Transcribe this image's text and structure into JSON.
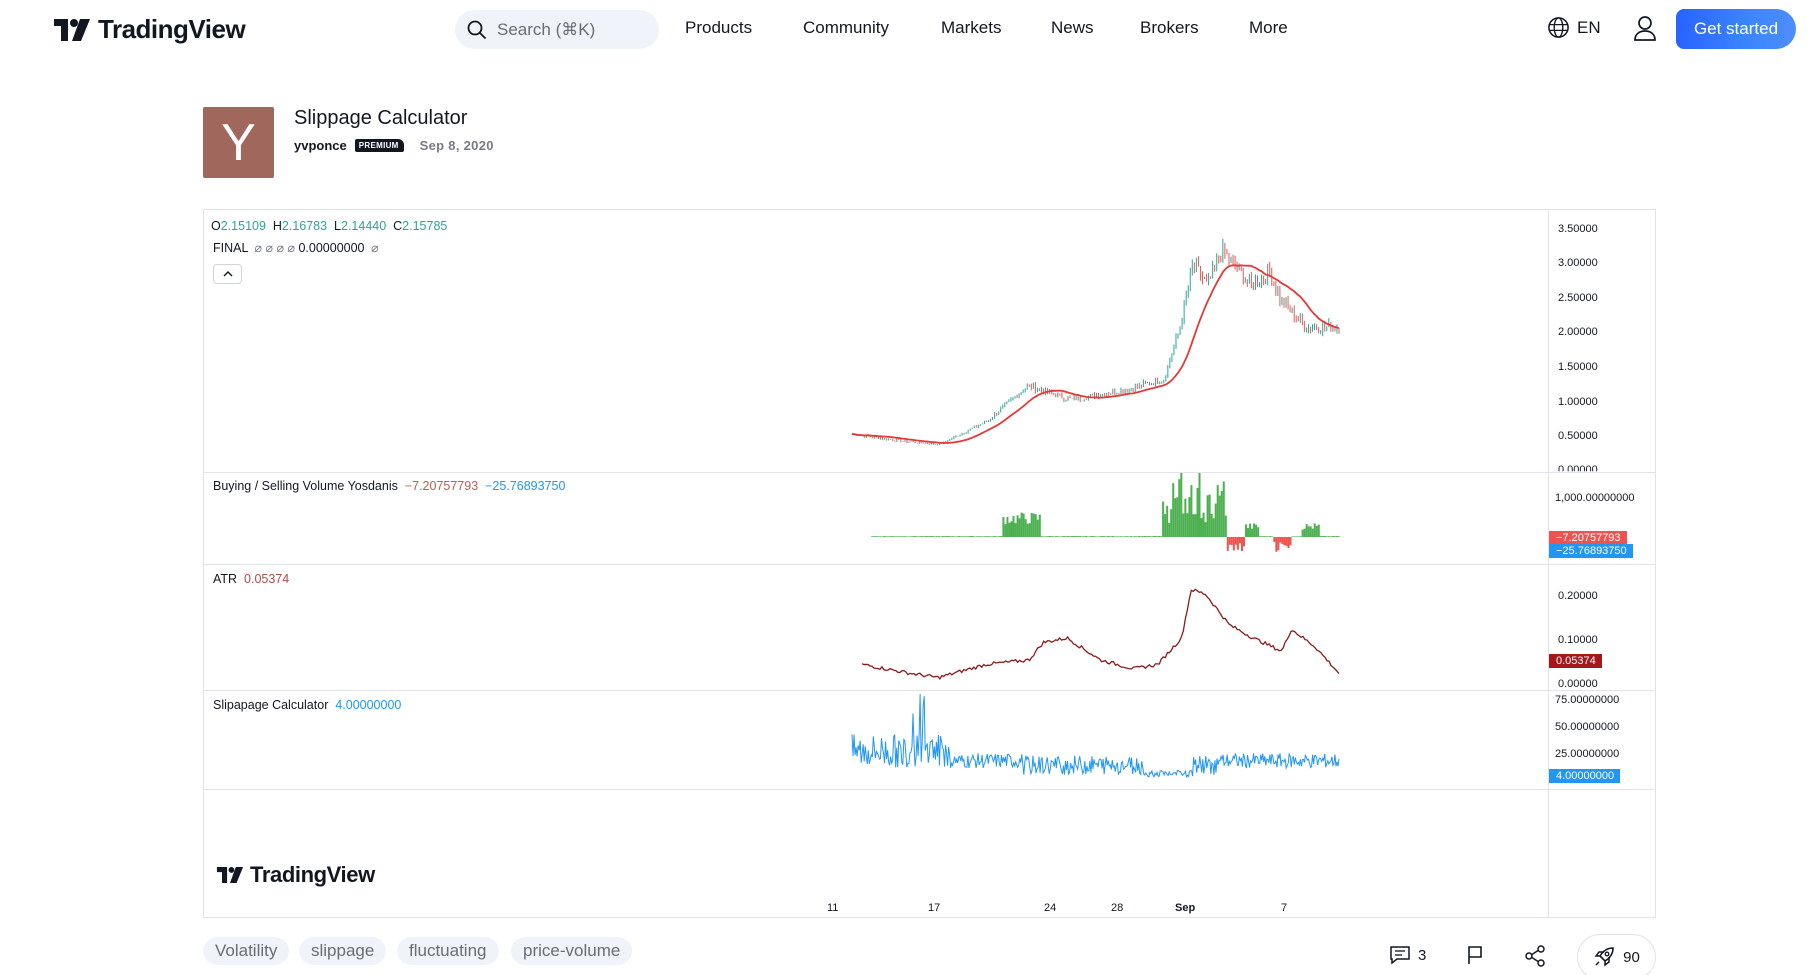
{
  "header": {
    "logo_text": "TradingView",
    "search_placeholder": "Search (⌘K)",
    "nav": [
      "Products",
      "Community",
      "Markets",
      "News",
      "Brokers",
      "More"
    ],
    "language": "EN",
    "cta_label": "Get started"
  },
  "idea": {
    "avatar_letter": "Y",
    "avatar_color": "#a0675d",
    "title": "Slippage Calculator",
    "author": "yvponce",
    "badge": "PREMIUM",
    "date": "Sep 8, 2020"
  },
  "chart": {
    "ohlc": {
      "o_label": "O",
      "o": "2.15109",
      "h_label": "H",
      "h": "2.16783",
      "l_label": "L",
      "l": "2.14440",
      "c_label": "C",
      "c": "2.15785"
    },
    "final_label": "FINAL",
    "final_symbols": "⌀ ⌀ ⌀ ⌀",
    "final_value": "0.00000000",
    "final_trailing": "⌀",
    "price_ticks": [
      "3.50000",
      "3.00000",
      "2.50000",
      "2.00000",
      "1.50000",
      "1.00000",
      "0.50000",
      "0.00000"
    ],
    "volume_label": "Buying / Selling Volume Yosdanis",
    "volume_val1": "−7.20757793",
    "volume_val2": "−25.76893750",
    "volume_tick": "1,000.00000000",
    "atr_label": "ATR",
    "atr_value": "0.05374",
    "atr_ticks": [
      "0.20000",
      "0.10000",
      "0.00000"
    ],
    "slip_label": "Slipapage Calculator",
    "slip_value": "4.00000000",
    "slip_ticks": [
      "75.00000000",
      "50.00000000",
      "25.00000000"
    ],
    "x_ticks": [
      "11",
      "17",
      "24",
      "28",
      "Sep",
      "7"
    ],
    "watermark": "TradingView",
    "colors": {
      "up": "#26a69a",
      "down": "#ef5350",
      "ma": "#e53935",
      "buy": "#4caf50",
      "sell": "#ef5350",
      "atr": "#8b1a1a",
      "slip": "#2196f3"
    }
  },
  "footer": {
    "tags": [
      "Volatility",
      "slippage",
      "fluctuating",
      "price-volume"
    ],
    "comments_count": "3",
    "boost_count": "90"
  }
}
